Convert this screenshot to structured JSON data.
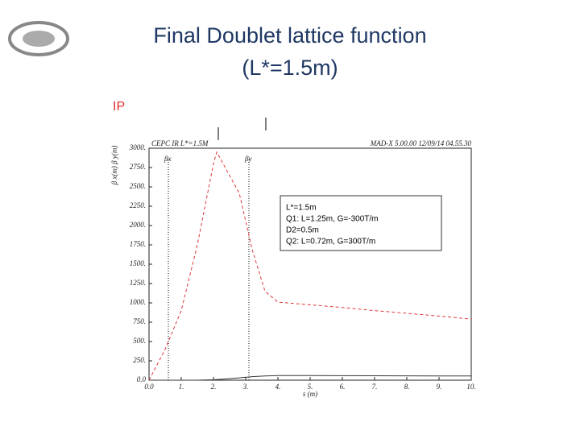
{
  "slide": {
    "title_lines": [
      "Final Doublet lattice function",
      "(L*=1.5m)"
    ],
    "ip_label": "IP",
    "note_lines": [
      "L*=1.5m",
      "Q1: L=1.25m, G=-300T/m",
      "D2=0.5m",
      "Q2: L=0.72m, G=300T/m"
    ]
  },
  "chart_data": {
    "type": "line",
    "header_left": "CEPC IR L*=1.5M",
    "header_right": "MAD-X 5.00.00  12/09/14 04.55.30",
    "xlabel": "s (m)",
    "ylabel": "β x(m) β y(m)",
    "x": [
      0,
      0.5,
      1,
      1.5,
      2,
      2.1,
      2.8,
      3.2,
      3.6,
      4,
      5,
      6,
      7,
      8,
      9,
      10
    ],
    "series": [
      {
        "name": "βx",
        "color": "#e03a3a",
        "dashed": true,
        "values": [
          0,
          400,
          900,
          1750,
          2800,
          2950,
          2420,
          1690,
          1150,
          1010,
          975,
          940,
          900,
          865,
          830,
          790
        ]
      },
      {
        "name": "βy",
        "color": "#333333",
        "dashed": false,
        "values": [
          0,
          0,
          0,
          0,
          5,
          8,
          30,
          45,
          55,
          60,
          60,
          58,
          57,
          56,
          55,
          55
        ]
      }
    ],
    "marker_s": [
      0.6,
      3.1
    ],
    "xlim": [
      0,
      10
    ],
    "ylim": [
      0,
      3000
    ],
    "xticks": [
      {
        "value": 0,
        "label": "0.0"
      },
      {
        "value": 1,
        "label": "1."
      },
      {
        "value": 2,
        "label": "2."
      },
      {
        "value": 3,
        "label": "3."
      },
      {
        "value": 4,
        "label": "4."
      },
      {
        "value": 5,
        "label": "5."
      },
      {
        "value": 6,
        "label": "6."
      },
      {
        "value": 7,
        "label": "7."
      },
      {
        "value": 8,
        "label": "8."
      },
      {
        "value": 9,
        "label": "9."
      },
      {
        "value": 10,
        "label": "10."
      }
    ],
    "yticks": [
      {
        "value": 0,
        "label": "0.0"
      },
      {
        "value": 250,
        "label": "250."
      },
      {
        "value": 500,
        "label": "500."
      },
      {
        "value": 750,
        "label": "750."
      },
      {
        "value": 1000,
        "label": "1000."
      },
      {
        "value": 1250,
        "label": "1250."
      },
      {
        "value": 1500,
        "label": "1500."
      },
      {
        "value": 1750,
        "label": "1750."
      },
      {
        "value": 2000,
        "label": "2000."
      },
      {
        "value": 2250,
        "label": "2250."
      },
      {
        "value": 2500,
        "label": "2500."
      },
      {
        "value": 2750,
        "label": "2750."
      },
      {
        "value": 3000,
        "label": "3000."
      }
    ]
  }
}
